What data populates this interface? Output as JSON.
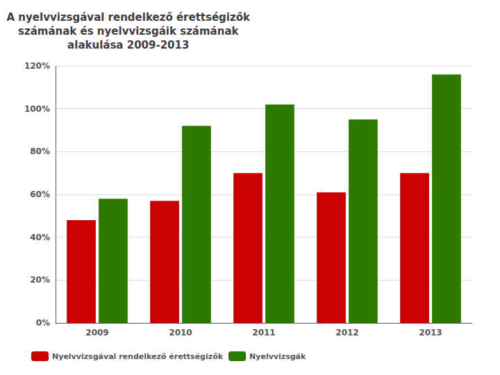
{
  "chart_data": {
    "type": "bar",
    "title": "A nyelvvizsgával rendelkező érettségizők\nszámának és nyelvvizsgáik számának\nalakulása 2009-2013",
    "categories": [
      "2009",
      "2010",
      "2011",
      "2012",
      "2013"
    ],
    "series": [
      {
        "name": "Nyelvvizsgával rendelkező érettségizők",
        "color": "#cc0000",
        "values": [
          48,
          57,
          70,
          61,
          70
        ]
      },
      {
        "name": "Nyelvvizsgák",
        "color": "#2d7a00",
        "values": [
          58,
          92,
          102,
          95,
          116
        ]
      }
    ],
    "ylim": [
      0,
      120
    ],
    "yticks": [
      {
        "value": 0,
        "label": "0%"
      },
      {
        "value": 20,
        "label": "20%"
      },
      {
        "value": 40,
        "label": "40%"
      },
      {
        "value": 60,
        "label": "60%"
      },
      {
        "value": 80,
        "label": "80%"
      },
      {
        "value": 100,
        "label": "100%"
      },
      {
        "value": 120,
        "label": "120%"
      }
    ],
    "grid": true,
    "legend": "lower left"
  }
}
